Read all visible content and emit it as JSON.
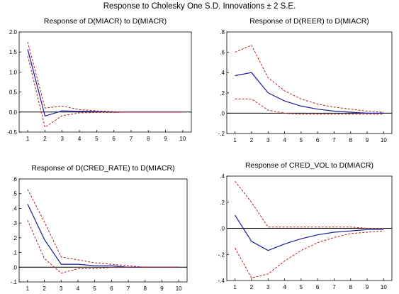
{
  "figure": {
    "title": "Response to Cholesky One S.D. Innovations ± 2 S.E.",
    "colors": {
      "response": "#1a1aa0",
      "bands": "#b22222",
      "zero": "#000000",
      "frame": "#000000"
    }
  },
  "chart_data": [
    {
      "type": "line",
      "title": "Response of D(MIACR) to D(MIACR)",
      "x": [
        1,
        2,
        3,
        4,
        5,
        6,
        7,
        8,
        9,
        10
      ],
      "ylim": [
        -0.5,
        2.0
      ],
      "yticks": [
        -0.5,
        0.0,
        0.5,
        1.0,
        1.5,
        2.0
      ],
      "ytick_labels": [
        "-0.5",
        "0.0",
        "0.5",
        "1.0",
        "1.5",
        "2.0"
      ],
      "series": [
        {
          "role": "response",
          "values": [
            1.57,
            -0.1,
            0.03,
            0.02,
            0.01,
            0.0,
            0.0,
            0.0,
            0.0,
            0.0
          ]
        },
        {
          "role": "upper",
          "values": [
            1.75,
            0.1,
            0.15,
            0.06,
            0.03,
            0.01,
            0.0,
            0.0,
            0.0,
            0.0
          ]
        },
        {
          "role": "lower",
          "values": [
            1.4,
            -0.38,
            -0.09,
            -0.02,
            -0.01,
            -0.01,
            0.0,
            0.0,
            0.0,
            0.0
          ]
        }
      ]
    },
    {
      "type": "line",
      "title": "Response of D(REER) to D(MIACR)",
      "x": [
        1,
        2,
        3,
        4,
        5,
        6,
        7,
        8,
        9,
        10
      ],
      "ylim": [
        -0.2,
        0.8
      ],
      "yticks": [
        -0.2,
        0.0,
        0.2,
        0.4,
        0.6,
        0.8
      ],
      "ytick_labels": [
        "-.2",
        ".0",
        ".2",
        ".4",
        ".6",
        ".8"
      ],
      "series": [
        {
          "role": "response",
          "values": [
            0.37,
            0.4,
            0.2,
            0.12,
            0.07,
            0.04,
            0.02,
            0.01,
            0.0,
            0.0
          ]
        },
        {
          "role": "upper",
          "values": [
            0.6,
            0.67,
            0.35,
            0.22,
            0.14,
            0.09,
            0.06,
            0.04,
            0.02,
            0.01
          ]
        },
        {
          "role": "lower",
          "values": [
            0.14,
            0.14,
            0.03,
            0.0,
            -0.01,
            -0.01,
            -0.01,
            -0.01,
            -0.01,
            -0.01
          ]
        }
      ]
    },
    {
      "type": "line",
      "title": "Response of D(CRED_RATE) to D(MIACR)",
      "x": [
        1,
        2,
        3,
        4,
        5,
        6,
        7,
        8,
        9,
        10
      ],
      "ylim": [
        -0.1,
        0.6
      ],
      "yticks": [
        -0.1,
        0.0,
        0.1,
        0.2,
        0.3,
        0.4,
        0.5,
        0.6
      ],
      "ytick_labels": [
        "-.1",
        ".0",
        ".1",
        ".2",
        ".3",
        ".4",
        ".5",
        ".6"
      ],
      "series": [
        {
          "role": "response",
          "values": [
            0.43,
            0.19,
            0.02,
            0.02,
            0.01,
            0.01,
            0.0,
            0.0,
            0.0,
            0.0
          ]
        },
        {
          "role": "upper",
          "values": [
            0.53,
            0.31,
            0.07,
            0.05,
            0.03,
            0.02,
            0.01,
            0.0,
            0.0,
            0.0
          ]
        },
        {
          "role": "lower",
          "values": [
            0.32,
            0.06,
            -0.04,
            -0.01,
            -0.01,
            0.0,
            0.0,
            0.0,
            0.0,
            0.0
          ]
        }
      ]
    },
    {
      "type": "line",
      "title": "Response of CRED_VOL to D(MIACR)",
      "x": [
        1,
        2,
        3,
        4,
        5,
        6,
        7,
        8,
        9,
        10
      ],
      "ylim": [
        -0.4,
        0.4
      ],
      "yticks": [
        -0.4,
        -0.2,
        0.0,
        0.2,
        0.4
      ],
      "ytick_labels": [
        "-.4",
        "-.2",
        ".0",
        ".2",
        ".4"
      ],
      "series": [
        {
          "role": "response",
          "values": [
            0.1,
            -0.1,
            -0.17,
            -0.12,
            -0.08,
            -0.05,
            -0.03,
            -0.02,
            -0.01,
            -0.01
          ]
        },
        {
          "role": "upper",
          "values": [
            0.36,
            0.2,
            0.01,
            0.01,
            0.01,
            0.01,
            0.01,
            0.01,
            0.0,
            0.0
          ]
        },
        {
          "role": "lower",
          "values": [
            -0.15,
            -0.38,
            -0.35,
            -0.25,
            -0.17,
            -0.11,
            -0.07,
            -0.04,
            -0.03,
            -0.02
          ]
        }
      ]
    }
  ]
}
